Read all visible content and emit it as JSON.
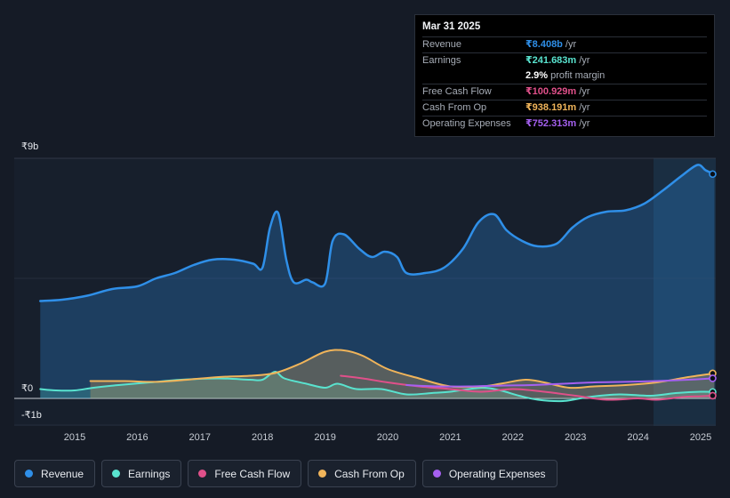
{
  "tooltip": {
    "date": "Mar 31 2025",
    "rows": [
      {
        "label": "Revenue",
        "value": "₹8.408b",
        "unit": "/yr",
        "color": "#2f8fe8"
      },
      {
        "label": "Earnings",
        "value": "₹241.683m",
        "unit": "/yr",
        "color": "#59e3cf"
      },
      {
        "label": "",
        "value": "2.9%",
        "unit": "profit margin",
        "color": "#ffffff"
      },
      {
        "label": "Free Cash Flow",
        "value": "₹100.929m",
        "unit": "/yr",
        "color": "#e0508a"
      },
      {
        "label": "Cash From Op",
        "value": "₹938.191m",
        "unit": "/yr",
        "color": "#f0b45a"
      },
      {
        "label": "Operating Expenses",
        "value": "₹752.313m",
        "unit": "/yr",
        "color": "#a560f0"
      }
    ]
  },
  "legend": [
    {
      "label": "Revenue",
      "color": "#2f8fe8"
    },
    {
      "label": "Earnings",
      "color": "#59e3cf"
    },
    {
      "label": "Free Cash Flow",
      "color": "#e0508a"
    },
    {
      "label": "Cash From Op",
      "color": "#f0b45a"
    },
    {
      "label": "Operating Expenses",
      "color": "#a560f0"
    }
  ],
  "chart_data": {
    "type": "area",
    "y_tick_labels": [
      "₹9b",
      "₹0",
      "-₹1b"
    ],
    "x_tick_labels": [
      "2015",
      "2016",
      "2017",
      "2018",
      "2019",
      "2020",
      "2021",
      "2022",
      "2023",
      "2024",
      "2025"
    ],
    "ylim": [
      -1,
      9
    ],
    "xlim": [
      2014.5,
      2025.25
    ],
    "grid": true,
    "series": [
      {
        "name": "Revenue",
        "color": "#2f8fe8",
        "area": true,
        "points": [
          [
            2014.45,
            3.65
          ],
          [
            2014.8,
            3.7
          ],
          [
            2015.2,
            3.85
          ],
          [
            2015.6,
            4.1
          ],
          [
            2016.0,
            4.2
          ],
          [
            2016.3,
            4.5
          ],
          [
            2016.6,
            4.7
          ],
          [
            2016.9,
            5.0
          ],
          [
            2017.2,
            5.2
          ],
          [
            2017.55,
            5.2
          ],
          [
            2017.85,
            5.05
          ],
          [
            2018.0,
            4.9
          ],
          [
            2018.12,
            6.4
          ],
          [
            2018.25,
            6.95
          ],
          [
            2018.38,
            5.2
          ],
          [
            2018.5,
            4.35
          ],
          [
            2018.7,
            4.45
          ],
          [
            2018.8,
            4.35
          ],
          [
            2019.0,
            4.3
          ],
          [
            2019.12,
            5.9
          ],
          [
            2019.3,
            6.15
          ],
          [
            2019.55,
            5.6
          ],
          [
            2019.75,
            5.3
          ],
          [
            2019.95,
            5.5
          ],
          [
            2020.15,
            5.3
          ],
          [
            2020.3,
            4.7
          ],
          [
            2020.6,
            4.7
          ],
          [
            2020.9,
            4.9
          ],
          [
            2021.2,
            5.6
          ],
          [
            2021.45,
            6.6
          ],
          [
            2021.7,
            6.9
          ],
          [
            2021.9,
            6.3
          ],
          [
            2022.15,
            5.9
          ],
          [
            2022.4,
            5.7
          ],
          [
            2022.7,
            5.8
          ],
          [
            2022.95,
            6.4
          ],
          [
            2023.2,
            6.8
          ],
          [
            2023.5,
            7.0
          ],
          [
            2023.8,
            7.05
          ],
          [
            2024.1,
            7.3
          ],
          [
            2024.4,
            7.8
          ],
          [
            2024.7,
            8.35
          ],
          [
            2024.95,
            8.75
          ],
          [
            2025.08,
            8.55
          ],
          [
            2025.22,
            8.408
          ]
        ]
      },
      {
        "name": "Earnings",
        "color": "#59e3cf",
        "area": true,
        "points": [
          [
            2014.45,
            0.35
          ],
          [
            2014.7,
            0.3
          ],
          [
            2015.0,
            0.3
          ],
          [
            2015.3,
            0.4
          ],
          [
            2015.7,
            0.5
          ],
          [
            2016.2,
            0.6
          ],
          [
            2016.7,
            0.7
          ],
          [
            2017.3,
            0.75
          ],
          [
            2017.8,
            0.7
          ],
          [
            2018.0,
            0.7
          ],
          [
            2018.2,
            1.0
          ],
          [
            2018.35,
            0.75
          ],
          [
            2018.7,
            0.55
          ],
          [
            2019.0,
            0.4
          ],
          [
            2019.2,
            0.55
          ],
          [
            2019.5,
            0.35
          ],
          [
            2019.9,
            0.35
          ],
          [
            2020.3,
            0.15
          ],
          [
            2020.7,
            0.2
          ],
          [
            2021.0,
            0.25
          ],
          [
            2021.5,
            0.4
          ],
          [
            2021.8,
            0.3
          ],
          [
            2022.1,
            0.1
          ],
          [
            2022.4,
            -0.05
          ],
          [
            2022.8,
            -0.1
          ],
          [
            2023.2,
            0.05
          ],
          [
            2023.7,
            0.15
          ],
          [
            2024.2,
            0.1
          ],
          [
            2024.6,
            0.2
          ],
          [
            2025.0,
            0.25
          ],
          [
            2025.22,
            0.2417
          ]
        ]
      },
      {
        "name": "Free Cash Flow",
        "color": "#e0508a",
        "area": false,
        "points": [
          [
            2019.25,
            0.85
          ],
          [
            2019.6,
            0.75
          ],
          [
            2020.0,
            0.6
          ],
          [
            2020.5,
            0.45
          ],
          [
            2021.0,
            0.35
          ],
          [
            2021.5,
            0.25
          ],
          [
            2022.0,
            0.35
          ],
          [
            2022.5,
            0.25
          ],
          [
            2023.0,
            0.1
          ],
          [
            2023.5,
            -0.05
          ],
          [
            2024.0,
            0.0
          ],
          [
            2024.3,
            -0.05
          ],
          [
            2024.7,
            0.05
          ],
          [
            2025.0,
            0.08
          ],
          [
            2025.22,
            0.1009
          ]
        ]
      },
      {
        "name": "Cash From Op",
        "color": "#f0b45a",
        "area": true,
        "points": [
          [
            2015.25,
            0.65
          ],
          [
            2015.8,
            0.65
          ],
          [
            2016.3,
            0.62
          ],
          [
            2016.8,
            0.7
          ],
          [
            2017.3,
            0.8
          ],
          [
            2017.8,
            0.85
          ],
          [
            2018.2,
            0.95
          ],
          [
            2018.6,
            1.3
          ],
          [
            2019.0,
            1.75
          ],
          [
            2019.3,
            1.8
          ],
          [
            2019.6,
            1.6
          ],
          [
            2020.0,
            1.1
          ],
          [
            2020.5,
            0.75
          ],
          [
            2021.0,
            0.45
          ],
          [
            2021.5,
            0.45
          ],
          [
            2021.8,
            0.55
          ],
          [
            2022.2,
            0.7
          ],
          [
            2022.5,
            0.6
          ],
          [
            2022.9,
            0.4
          ],
          [
            2023.3,
            0.45
          ],
          [
            2023.8,
            0.5
          ],
          [
            2024.3,
            0.6
          ],
          [
            2024.8,
            0.8
          ],
          [
            2025.22,
            0.938
          ]
        ]
      },
      {
        "name": "Operating Expenses",
        "color": "#a560f0",
        "area": false,
        "points": [
          [
            2020.3,
            0.5
          ],
          [
            2020.8,
            0.45
          ],
          [
            2021.3,
            0.45
          ],
          [
            2021.8,
            0.48
          ],
          [
            2022.3,
            0.5
          ],
          [
            2022.8,
            0.55
          ],
          [
            2023.3,
            0.6
          ],
          [
            2023.8,
            0.62
          ],
          [
            2024.3,
            0.65
          ],
          [
            2024.8,
            0.7
          ],
          [
            2025.22,
            0.7523
          ]
        ]
      }
    ]
  }
}
